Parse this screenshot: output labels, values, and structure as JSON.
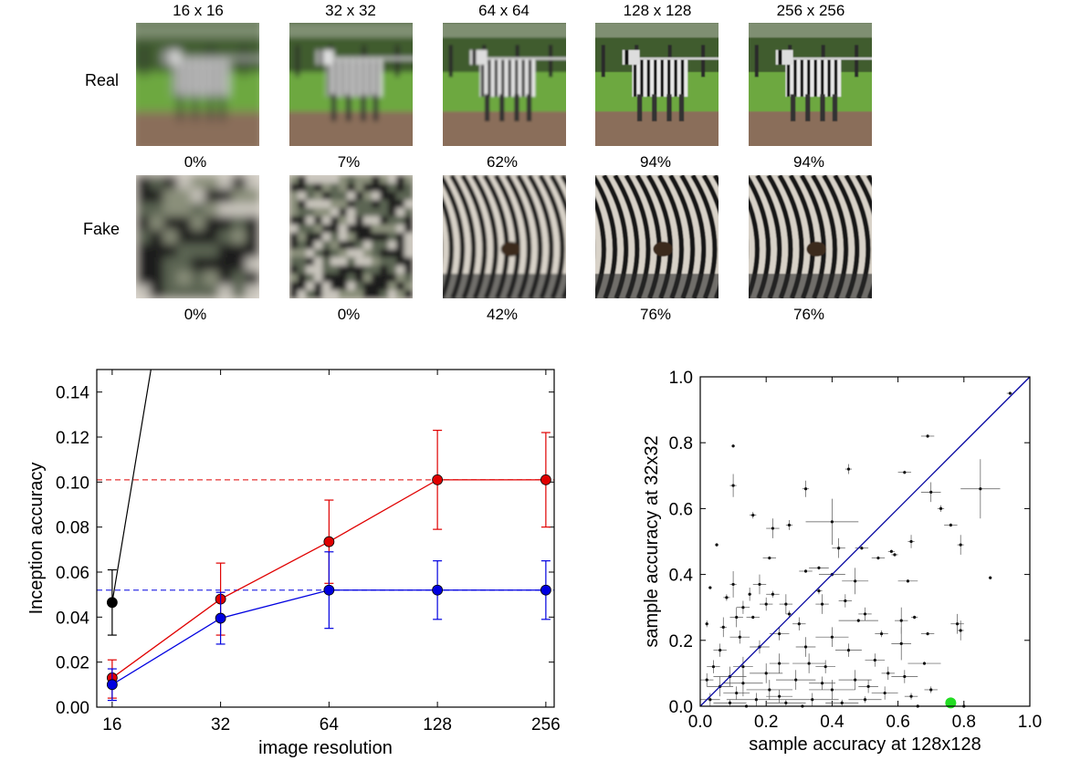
{
  "grid": {
    "resolutions": [
      "16 x 16",
      "32 x 32",
      "64 x 64",
      "128 x 128",
      "256 x 256"
    ],
    "rows": [
      {
        "label": "Real",
        "image": "real-zebra-photo",
        "percentages": [
          "0%",
          "7%",
          "62%",
          "94%",
          "94%"
        ]
      },
      {
        "label": "Fake",
        "image": "generated-zebra-sample",
        "percentages": [
          "0%",
          "0%",
          "42%",
          "76%",
          "76%"
        ]
      }
    ]
  },
  "chart_data": [
    {
      "type": "line",
      "xlabel": "image resolution",
      "ylabel": "Inception accuracy",
      "x_scale": "log2",
      "categories": [
        "16",
        "32",
        "64",
        "128",
        "256"
      ],
      "x": [
        16,
        32,
        64,
        128,
        256
      ],
      "ylim": [
        0.0,
        0.15
      ],
      "yticks": [
        "0.00",
        "0.02",
        "0.04",
        "0.06",
        "0.08",
        "0.10",
        "0.12",
        "0.14"
      ],
      "colors": {
        "red": "#e00000",
        "blue": "#0000e0",
        "black": "#000000"
      },
      "series": [
        {
          "color": "red",
          "values": [
            0.013,
            0.048,
            0.0735,
            0.101,
            0.101
          ],
          "err_low": [
            0.004,
            0.032,
            0.055,
            0.079,
            0.08
          ],
          "err_high": [
            0.021,
            0.064,
            0.092,
            0.123,
            0.122
          ]
        },
        {
          "color": "blue",
          "values": [
            0.01,
            0.0395,
            0.052,
            0.052,
            0.052
          ],
          "err_low": [
            0.003,
            0.028,
            0.035,
            0.039,
            0.039
          ],
          "err_high": [
            0.017,
            0.051,
            0.069,
            0.065,
            0.065
          ]
        },
        {
          "color": "black",
          "values": [
            0.0465
          ],
          "x": [
            16
          ],
          "err_low": [
            0.032
          ],
          "err_high": [
            0.061
          ]
        }
      ],
      "reference_lines": [
        {
          "color": "red",
          "style": "dashed",
          "y": 0.101
        },
        {
          "color": "blue",
          "style": "dashed",
          "y": 0.052
        }
      ],
      "black_line": {
        "from": [
          16,
          0.0465
        ],
        "to": [
          20.5,
          0.15
        ]
      }
    },
    {
      "type": "scatter",
      "xlabel": "sample accuracy at 128x128",
      "ylabel": "sample accuracy at 32x32",
      "xlim": [
        0.0,
        1.0
      ],
      "ylim": [
        0.0,
        1.0
      ],
      "xticks": [
        "0.0",
        "0.2",
        "0.4",
        "0.6",
        "0.8",
        "1.0"
      ],
      "yticks": [
        "0.0",
        "0.2",
        "0.4",
        "0.6",
        "0.8",
        "1.0"
      ],
      "diagonal_color": "#0000a0",
      "highlight": {
        "x": 0.76,
        "y": 0.01,
        "color": "#22dd22"
      },
      "points": [
        [
          0.94,
          0.95,
          0.01,
          0.005
        ],
        [
          0.69,
          0.82,
          0.02,
          0.005
        ],
        [
          0.45,
          0.72,
          0.01,
          0.015
        ],
        [
          0.62,
          0.71,
          0.02,
          0.005
        ],
        [
          0.1,
          0.79,
          0.005,
          0.005
        ],
        [
          0.1,
          0.67,
          0.01,
          0.035
        ],
        [
          0.7,
          0.65,
          0.03,
          0.03
        ],
        [
          0.85,
          0.66,
          0.06,
          0.09
        ],
        [
          0.32,
          0.66,
          0.01,
          0.025
        ],
        [
          0.73,
          0.6,
          0.01,
          0.01
        ],
        [
          0.16,
          0.58,
          0.01,
          0.01
        ],
        [
          0.76,
          0.55,
          0.02,
          0.005
        ],
        [
          0.4,
          0.56,
          0.08,
          0.07
        ],
        [
          0.22,
          0.54,
          0.02,
          0.03
        ],
        [
          0.27,
          0.55,
          0.01,
          0.015
        ],
        [
          0.64,
          0.5,
          0.01,
          0.02
        ],
        [
          0.79,
          0.49,
          0.01,
          0.03
        ],
        [
          0.05,
          0.49,
          0.005,
          0.005
        ],
        [
          0.42,
          0.48,
          0.02,
          0.03
        ],
        [
          0.49,
          0.48,
          0.02,
          0.005
        ],
        [
          0.58,
          0.47,
          0.01,
          0.005
        ],
        [
          0.54,
          0.45,
          0.02,
          0.005
        ],
        [
          0.21,
          0.45,
          0.02,
          0.005
        ],
        [
          0.59,
          0.46,
          0.01,
          0.005
        ],
        [
          0.88,
          0.39,
          0.005,
          0.005
        ],
        [
          0.32,
          0.41,
          0.02,
          0.005
        ],
        [
          0.36,
          0.42,
          0.03,
          0.005
        ],
        [
          0.4,
          0.4,
          0.04,
          0.005
        ],
        [
          0.47,
          0.38,
          0.04,
          0.04
        ],
        [
          0.63,
          0.38,
          0.03,
          0.005
        ],
        [
          0.18,
          0.37,
          0.02,
          0.03
        ],
        [
          0.1,
          0.37,
          0.01,
          0.04
        ],
        [
          0.03,
          0.36,
          0.005,
          0.005
        ],
        [
          0.15,
          0.34,
          0.005,
          0.02
        ],
        [
          0.36,
          0.35,
          0.01,
          0.01
        ],
        [
          0.22,
          0.34,
          0.02,
          0.01
        ],
        [
          0.08,
          0.33,
          0.01,
          0.01
        ],
        [
          0.26,
          0.31,
          0.02,
          0.03
        ],
        [
          0.13,
          0.3,
          0.02,
          0.02
        ],
        [
          0.27,
          0.28,
          0.01,
          0.01
        ],
        [
          0.37,
          0.31,
          0.02,
          0.03
        ],
        [
          0.44,
          0.32,
          0.02,
          0.02
        ],
        [
          0.2,
          0.31,
          0.02,
          0.02
        ],
        [
          0.11,
          0.27,
          0.02,
          0.03
        ],
        [
          0.16,
          0.27,
          0.02,
          0.005
        ],
        [
          0.48,
          0.26,
          0.06,
          0.005
        ],
        [
          0.61,
          0.26,
          0.02,
          0.04
        ],
        [
          0.65,
          0.27,
          0.01,
          0.005
        ],
        [
          0.5,
          0.28,
          0.02,
          0.02
        ],
        [
          0.78,
          0.25,
          0.02,
          0.03
        ],
        [
          0.69,
          0.22,
          0.02,
          0.005
        ],
        [
          0.79,
          0.23,
          0.01,
          0.03
        ],
        [
          0.3,
          0.25,
          0.02,
          0.02
        ],
        [
          0.07,
          0.24,
          0.01,
          0.03
        ],
        [
          0.02,
          0.25,
          0.005,
          0.01
        ],
        [
          0.12,
          0.21,
          0.03,
          0.02
        ],
        [
          0.4,
          0.21,
          0.05,
          0.03
        ],
        [
          0.55,
          0.22,
          0.02,
          0.01
        ],
        [
          0.24,
          0.22,
          0.03,
          0.02
        ],
        [
          0.61,
          0.19,
          0.03,
          0.05
        ],
        [
          0.32,
          0.18,
          0.03,
          0.03
        ],
        [
          0.18,
          0.18,
          0.03,
          0.02
        ],
        [
          0.45,
          0.17,
          0.04,
          0.02
        ],
        [
          0.06,
          0.17,
          0.02,
          0.02
        ],
        [
          0.68,
          0.13,
          0.05,
          0.005
        ],
        [
          0.53,
          0.14,
          0.03,
          0.02
        ],
        [
          0.24,
          0.13,
          0.03,
          0.03
        ],
        [
          0.13,
          0.12,
          0.03,
          0.03
        ],
        [
          0.38,
          0.12,
          0.03,
          0.02
        ],
        [
          0.04,
          0.12,
          0.02,
          0.02
        ],
        [
          0.62,
          0.09,
          0.04,
          0.02
        ],
        [
          0.47,
          0.08,
          0.05,
          0.03
        ],
        [
          0.29,
          0.08,
          0.06,
          0.03
        ],
        [
          0.13,
          0.07,
          0.06,
          0.04
        ],
        [
          0.7,
          0.05,
          0.02,
          0.01
        ],
        [
          0.56,
          0.04,
          0.04,
          0.02
        ],
        [
          0.4,
          0.05,
          0.07,
          0.03
        ],
        [
          0.21,
          0.05,
          0.07,
          0.03
        ],
        [
          0.06,
          0.06,
          0.04,
          0.03
        ],
        [
          0.64,
          0.03,
          0.02,
          0.01
        ],
        [
          0.5,
          0.02,
          0.05,
          0.01
        ],
        [
          0.34,
          0.02,
          0.08,
          0.02
        ],
        [
          0.17,
          0.02,
          0.09,
          0.02
        ],
        [
          0.03,
          0.02,
          0.03,
          0.02
        ],
        [
          0.09,
          0.01,
          0.05,
          0.01
        ],
        [
          0.26,
          0.01,
          0.06,
          0.01
        ],
        [
          0.43,
          0.01,
          0.05,
          0.01
        ],
        [
          0.8,
          0.0,
          0.03,
          0.005
        ],
        [
          0.66,
          0.0,
          0.03,
          0.005
        ],
        [
          0.14,
          0.0,
          0.04,
          0.005
        ],
        [
          0.31,
          0.0,
          0.05,
          0.005
        ],
        [
          0.2,
          0.1,
          0.05,
          0.03
        ],
        [
          0.09,
          0.09,
          0.05,
          0.03
        ],
        [
          0.33,
          0.13,
          0.05,
          0.03
        ],
        [
          0.51,
          0.06,
          0.03,
          0.02
        ],
        [
          0.24,
          0.03,
          0.04,
          0.02
        ],
        [
          0.02,
          0.08,
          0.02,
          0.02
        ],
        [
          0.11,
          0.04,
          0.04,
          0.02
        ],
        [
          0.37,
          0.07,
          0.04,
          0.02
        ],
        [
          0.57,
          0.1,
          0.02,
          0.02
        ]
      ]
    }
  ]
}
